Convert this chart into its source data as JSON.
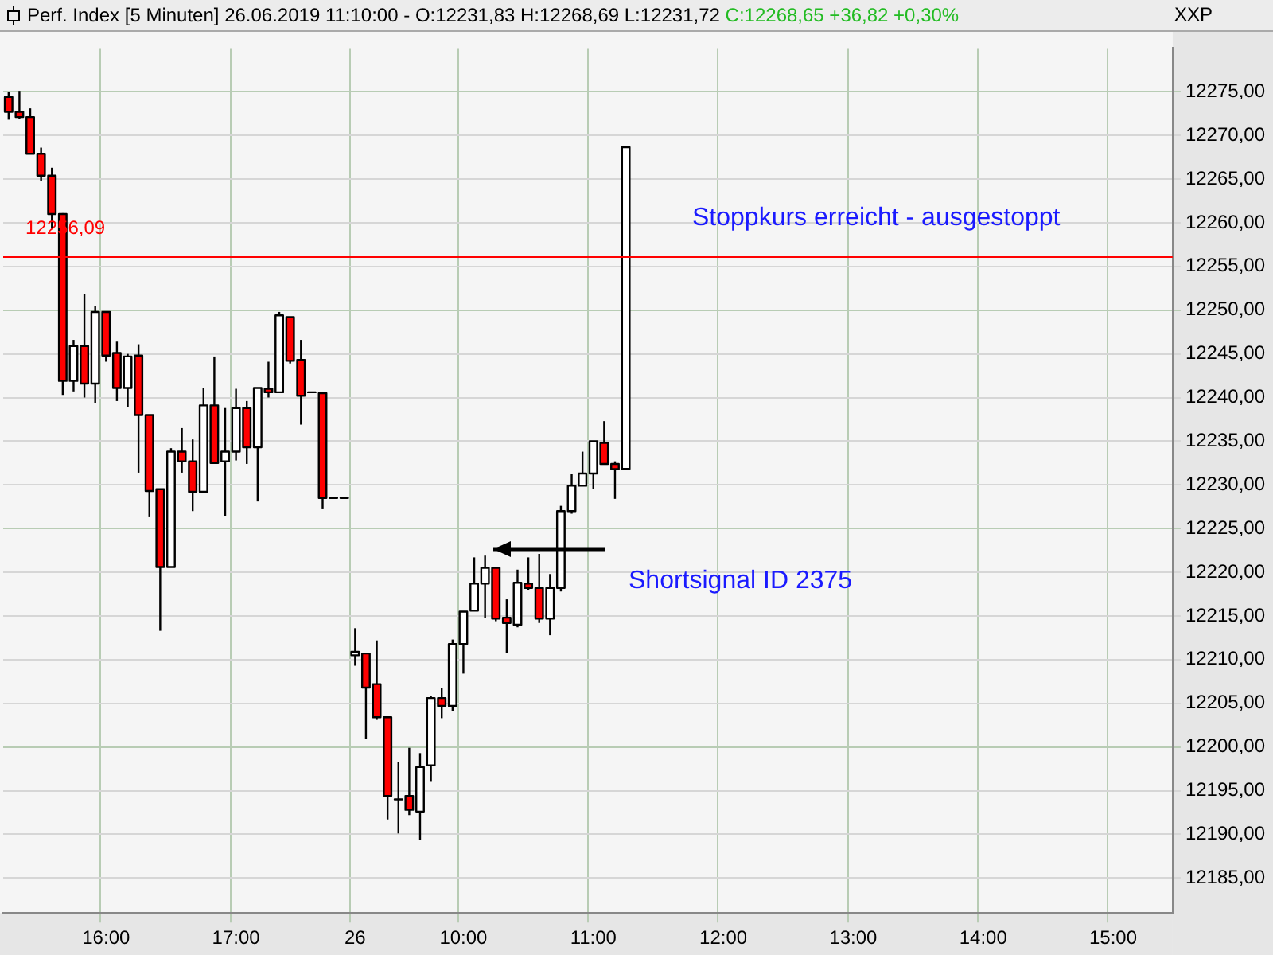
{
  "chart_data": {
    "type": "candlestick",
    "title": "Perf. Index [5 Minuten] 26.06.2019 11:10:00 - O:12231,83 H:12268,69 L:12231,72",
    "subtitle": "C:12268,65 +36,82 +0,30%",
    "categories": [
      null,
      null,
      null,
      null,
      null,
      null,
      null,
      null,
      null,
      "16:00",
      null,
      null,
      null,
      null,
      null,
      null,
      null,
      null,
      null,
      null,
      null,
      "17:00",
      null,
      null,
      null,
      null,
      null,
      null,
      null,
      null,
      null,
      null,
      "26",
      null,
      null,
      null,
      null,
      null,
      null,
      null,
      null,
      null,
      "10:00",
      null,
      null,
      null,
      null,
      null,
      null,
      null,
      null,
      null,
      null,
      null,
      "11:00",
      null,
      null,
      null,
      null,
      null,
      null,
      null,
      null,
      null,
      null,
      null,
      "12:00",
      null,
      null,
      null,
      null,
      null,
      null,
      null,
      null,
      null,
      null,
      null,
      "13:00",
      null,
      null,
      null,
      null,
      null,
      null,
      null,
      null,
      null,
      null,
      null,
      "14:00",
      null,
      null,
      null,
      null,
      null,
      null,
      null,
      null,
      null,
      null,
      null,
      "15:00",
      null,
      null,
      null,
      null,
      null
    ],
    "ohlc": [
      [
        12274.4,
        12275.0,
        12271.8,
        12272.7
      ],
      [
        12272.7,
        12275.1,
        12271.9,
        12272.1
      ],
      [
        12272.1,
        12273.1,
        12267.9,
        12267.9
      ],
      [
        12267.9,
        12268.6,
        12264.8,
        12265.4
      ],
      [
        12265.4,
        12266.3,
        12259.3,
        12261.0
      ],
      [
        12261.0,
        12261.1,
        12240.3,
        12241.9
      ],
      [
        12241.9,
        12246.6,
        12240.7,
        12245.9
      ],
      [
        12245.9,
        12251.8,
        12240.0,
        12241.6
      ],
      [
        12241.6,
        12250.5,
        12239.4,
        12249.8
      ],
      [
        12249.8,
        12249.8,
        12244.1,
        12244.8
      ],
      [
        12245.1,
        12246.4,
        12239.6,
        12241.1
      ],
      [
        12241.1,
        12245.0,
        12238.9,
        12244.7
      ],
      [
        12244.8,
        12246.1,
        12231.4,
        12238.0
      ],
      [
        12238.0,
        12238.0,
        12226.3,
        12229.3
      ],
      [
        12229.5,
        12229.5,
        12213.3,
        12220.6
      ],
      [
        12220.6,
        12234.2,
        12220.6,
        12233.8
      ],
      [
        12233.8,
        12236.5,
        12231.4,
        12232.7
      ],
      [
        12232.7,
        12235.2,
        12227.0,
        12229.2
      ],
      [
        12229.2,
        12241.1,
        12229.2,
        12239.1
      ],
      [
        12239.1,
        12244.7,
        12232.4,
        12232.5
      ],
      [
        12232.7,
        12238.8,
        12226.4,
        12233.8
      ],
      [
        12233.8,
        12241.0,
        12232.8,
        12238.8
      ],
      [
        12238.8,
        12239.6,
        12232.4,
        12234.3
      ],
      [
        12234.3,
        12241.1,
        12228.1,
        12241.1
      ],
      [
        12241.0,
        12244.1,
        12240.0,
        12240.6
      ],
      [
        12240.6,
        12249.8,
        12240.6,
        12249.4
      ],
      [
        12249.2,
        12249.2,
        12243.9,
        12244.2
      ],
      [
        12244.3,
        12246.6,
        12236.9,
        12240.2
      ],
      [
        12240.6,
        12240.6,
        12240.6,
        12240.6
      ],
      [
        12240.5,
        12240.5,
        12227.3,
        12228.5
      ],
      [
        12228.5,
        12228.5,
        12228.5,
        12228.5
      ],
      [
        12228.5,
        12228.5,
        12228.5,
        12228.5
      ],
      [
        12210.5,
        12213.6,
        12209.3,
        12210.9
      ],
      [
        12210.7,
        12210.7,
        12200.9,
        12206.8
      ],
      [
        12207.2,
        12212.2,
        12203.1,
        12203.4
      ],
      [
        12203.4,
        12203.4,
        12191.7,
        12194.4
      ],
      [
        12194.0,
        12198.3,
        12190.1,
        12194.0
      ],
      [
        12194.4,
        12199.9,
        12192.2,
        12192.8
      ],
      [
        12192.6,
        12199.3,
        12189.4,
        12197.7
      ],
      [
        12197.9,
        12205.8,
        12196.1,
        12205.6
      ],
      [
        12205.6,
        12206.8,
        12203.3,
        12204.7
      ],
      [
        12204.7,
        12212.3,
        12204.1,
        12211.8
      ],
      [
        12211.8,
        12215.5,
        12208.4,
        12215.5
      ],
      [
        12215.6,
        12221.7,
        12215.6,
        12218.7
      ],
      [
        12218.7,
        12221.9,
        12214.8,
        12220.5
      ],
      [
        12220.5,
        12220.5,
        12214.4,
        12214.7
      ],
      [
        12214.8,
        12216.9,
        12210.8,
        12214.2
      ],
      [
        12214.0,
        12220.3,
        12213.7,
        12218.8
      ],
      [
        12218.7,
        12221.7,
        12218.0,
        12218.2
      ],
      [
        12218.2,
        12222.1,
        12214.2,
        12214.7
      ],
      [
        12214.7,
        12219.8,
        12212.8,
        12218.2
      ],
      [
        12218.2,
        12227.6,
        12217.8,
        12227.0
      ],
      [
        12227.0,
        12231.3,
        12226.7,
        12229.9
      ],
      [
        12229.9,
        12233.8,
        12229.9,
        12231.3
      ],
      [
        12231.3,
        12235.0,
        12229.5,
        12235.0
      ],
      [
        12234.8,
        12237.3,
        12232.4,
        12232.4
      ],
      [
        12232.4,
        12232.7,
        12228.4,
        12231.8
      ],
      [
        12231.83,
        12268.69,
        12231.72,
        12268.65
      ],
      null,
      null,
      null,
      null,
      null,
      null,
      null,
      null,
      null,
      null,
      null,
      null,
      null,
      null,
      null,
      null,
      null,
      null,
      null,
      null,
      null,
      null,
      null,
      null,
      null,
      null,
      null,
      null,
      null,
      null,
      null,
      null,
      null,
      null,
      null,
      null,
      null,
      null,
      null,
      null,
      null,
      null,
      null,
      null,
      null,
      null,
      null,
      null,
      null,
      null
    ],
    "colors": [
      "#ff0000",
      "#ff0000",
      "#ff0000",
      "#ff0000",
      "#ff0000",
      "#ff0000",
      "#ffffff",
      "#ff0000",
      "#ffffff",
      "#ff0000",
      "#ff0000",
      "#ffffff",
      "#ff0000",
      "#ff0000",
      "#ff0000",
      "#ffffff",
      "#ff0000",
      "#ff0000",
      "#ffffff",
      "#ff0000",
      "#ffffff",
      "#ffffff",
      "#ff0000",
      "#ffffff",
      "#ff0000",
      "#ffffff",
      "#ff0000",
      "#ff0000",
      "#000000",
      "#ff0000",
      "#000000",
      "#000000",
      "#ffffff",
      "#ff0000",
      "#ff0000",
      "#ff0000",
      "#000000",
      "#ff0000",
      "#ffffff",
      "#ffffff",
      "#ff0000",
      "#ffffff",
      "#ffffff",
      "#ffffff",
      "#ffffff",
      "#ff0000",
      "#ff0000",
      "#ffffff",
      "#ff0000",
      "#ff0000",
      "#ffffff",
      "#ffffff",
      "#ffffff",
      "#ffffff",
      "#ffffff",
      "#ff0000",
      "#ff0000",
      "#ffffff",
      null,
      null,
      null,
      null,
      null,
      null,
      null,
      null,
      null,
      null,
      null,
      null,
      null,
      null,
      null,
      null,
      null,
      null,
      null,
      null,
      null,
      null,
      null,
      null,
      null,
      null,
      null,
      null,
      null,
      null,
      null,
      null,
      null,
      null,
      null,
      null,
      null,
      null,
      null,
      null,
      null,
      null,
      null,
      null,
      null,
      null,
      null,
      null,
      null,
      null
    ],
    "ylim": [
      12181,
      12280
    ],
    "yticks": [
      {
        "value": 12185,
        "label": "12185,00"
      },
      {
        "value": 12190,
        "label": "12190,00"
      },
      {
        "value": 12195,
        "label": "12195,00"
      },
      {
        "value": 12200,
        "label": "12200,00"
      },
      {
        "value": 12205,
        "label": "12205,00"
      },
      {
        "value": 12210,
        "label": "12210,00"
      },
      {
        "value": 12215,
        "label": "12215,00"
      },
      {
        "value": 12220,
        "label": "12220,00"
      },
      {
        "value": 12225,
        "label": "12225,00"
      },
      {
        "value": 12230,
        "label": "12230,00"
      },
      {
        "value": 12235,
        "label": "12235,00"
      },
      {
        "value": 12240,
        "label": "12240,00"
      },
      {
        "value": 12245,
        "label": "12245,00"
      },
      {
        "value": 12250,
        "label": "12250,00"
      },
      {
        "value": 12255,
        "label": "12255,00"
      },
      {
        "value": 12260,
        "label": "12260,00"
      },
      {
        "value": 12265,
        "label": "12265,00"
      },
      {
        "value": 12270,
        "label": "12270,00"
      },
      {
        "value": 12275,
        "label": "12275,00"
      }
    ],
    "grid": true,
    "legend": false,
    "ref_lines": [
      {
        "axis": "y",
        "value": 12256.09,
        "label": "12256,09",
        "color": "#ff0000"
      }
    ],
    "annotations": [
      "Stoppkurs erreicht - ausgestoppt",
      "Shortsignal ID 2375",
      "XXP"
    ]
  }
}
